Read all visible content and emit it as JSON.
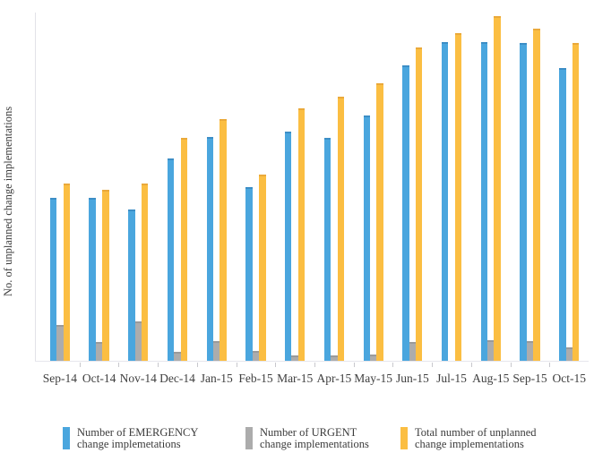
{
  "page": {
    "background": "#ffffff",
    "text_color": "#3b3b3b"
  },
  "chart_data": {
    "type": "bar",
    "title": "",
    "xlabel": "",
    "ylabel": "No. of unplanned change implementations",
    "categories": [
      "Sep-14",
      "Oct-14",
      "Nov-14",
      "Dec-14",
      "Jan-15",
      "Feb-15",
      "Mar-15",
      "Apr-15",
      "May-15",
      "Jun-15",
      "Jul-15",
      "Aug-15",
      "Sep-15",
      "Oct-15"
    ],
    "series": [
      {
        "name": "Number of EMERGENCY change implemetations",
        "legend_lines": [
          "Number of EMERGENCY",
          "change implemetations"
        ],
        "color": "#4AA6DE",
        "cap_color": "#3C8EC6",
        "values": [
          182,
          182,
          169,
          227,
          251,
          194,
          257,
          250,
          275,
          331,
          357,
          357,
          356,
          328
        ]
      },
      {
        "name": "Number of URGENT change implementations",
        "legend_lines": [
          "Number of URGENT",
          "change implementations"
        ],
        "color": "#ACACAC",
        "cap_color": "#9A9A9A",
        "values": [
          40,
          21,
          44,
          10,
          22,
          11,
          6,
          6,
          7,
          21,
          0,
          23,
          22,
          15
        ]
      },
      {
        "name": "Total number of unplanned change implementations",
        "legend_lines": [
          "Total number of unplanned",
          "change implementations"
        ],
        "color": "#FBBE42",
        "cap_color": "#EAA93A",
        "values": [
          199,
          191,
          199,
          250,
          271,
          209,
          283,
          296,
          311,
          351,
          367,
          386,
          372,
          356
        ]
      }
    ],
    "ylim": [
      0,
      390
    ],
    "value_units": "relative (y axis has no numeric tick labels)",
    "grid": false,
    "y_axis_tick_labels_shown": false,
    "legend_position": "bottom",
    "axis_color": "#e2e2e8",
    "tick_color": "#c8c8cd"
  }
}
